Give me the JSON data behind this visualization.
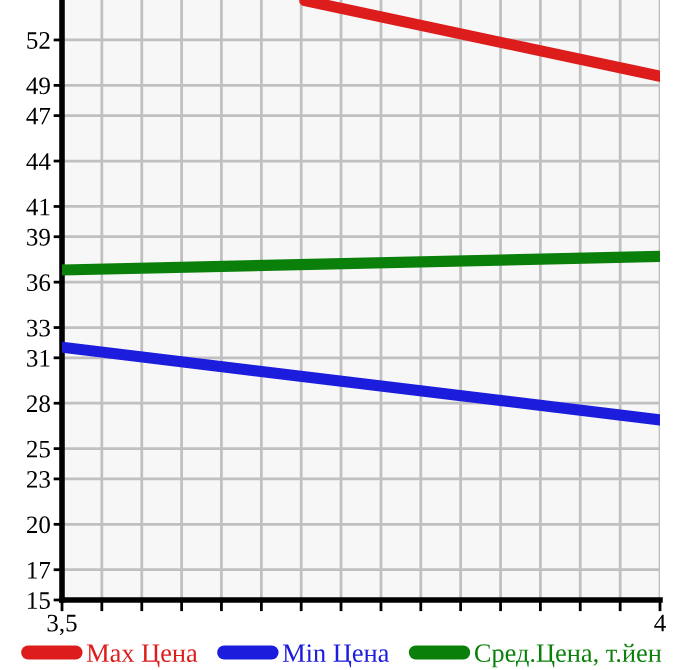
{
  "chart_data": {
    "type": "line",
    "xlim": [
      3.5,
      4
    ],
    "xticks": [
      {
        "value": 3.5,
        "label": "3,5"
      },
      {
        "value": 3.5333,
        "label": null
      },
      {
        "value": 3.5667,
        "label": null
      },
      {
        "value": 3.6,
        "label": null
      },
      {
        "value": 3.6333,
        "label": null
      },
      {
        "value": 3.6667,
        "label": null
      },
      {
        "value": 3.7,
        "label": null
      },
      {
        "value": 3.7333,
        "label": null
      },
      {
        "value": 3.7667,
        "label": null
      },
      {
        "value": 3.8,
        "label": null
      },
      {
        "value": 3.8333,
        "label": null
      },
      {
        "value": 3.8667,
        "label": null
      },
      {
        "value": 3.9,
        "label": null
      },
      {
        "value": 3.9333,
        "label": null
      },
      {
        "value": 3.9667,
        "label": null
      },
      {
        "value": 4,
        "label": "4"
      }
    ],
    "ylim": [
      15,
      54.64
    ],
    "yticks": [
      15,
      17,
      20,
      23,
      25,
      28,
      31,
      33,
      36,
      39,
      41,
      44,
      47,
      49,
      52
    ],
    "grid": true,
    "legend": "bottom",
    "marker": "none",
    "line_style": "solid",
    "series": [
      {
        "name": "Max Цена",
        "color": "#dd1c1c",
        "x": [
          3.703,
          4
        ],
        "values": [
          54.6,
          49.6
        ]
      },
      {
        "name": "Min Цена",
        "color": "#1c1cdd",
        "x": [
          3.5,
          4
        ],
        "values": [
          31.7,
          26.9
        ]
      },
      {
        "name": "Сред.Цена, т.йен",
        "color": "#0a800a",
        "x": [
          3.5,
          4
        ],
        "values": [
          36.8,
          37.7
        ]
      }
    ]
  }
}
